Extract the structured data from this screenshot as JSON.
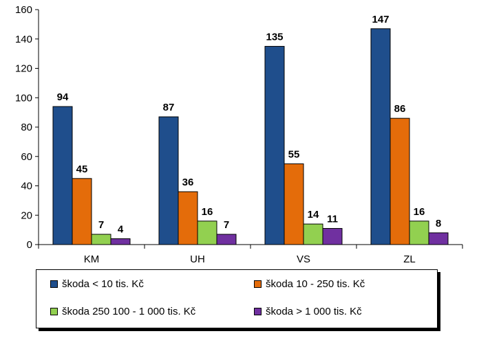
{
  "chart_data": {
    "type": "bar",
    "categories": [
      "KM",
      "UH",
      "VS",
      "ZL"
    ],
    "series": [
      {
        "name": "škoda < 10 tis. Kč",
        "color": "#1F4E8C",
        "values": [
          94,
          87,
          135,
          147
        ]
      },
      {
        "name": "škoda 10 - 250 tis. Kč",
        "color": "#E46C0A",
        "values": [
          45,
          36,
          55,
          86
        ]
      },
      {
        "name": "škoda 250 100 - 1 000 tis. Kč",
        "color": "#92D050",
        "values": [
          7,
          16,
          14,
          16
        ]
      },
      {
        "name": "škoda > 1 000 tis. Kč",
        "color": "#7030A0",
        "values": [
          4,
          7,
          11,
          8
        ]
      }
    ],
    "ylim": [
      0,
      160
    ],
    "yticks": [
      "0",
      "20",
      "40",
      "60",
      "80",
      "100",
      "120",
      "140",
      "160"
    ],
    "data_labels": true,
    "grid": false,
    "legend_position": "bottom"
  }
}
